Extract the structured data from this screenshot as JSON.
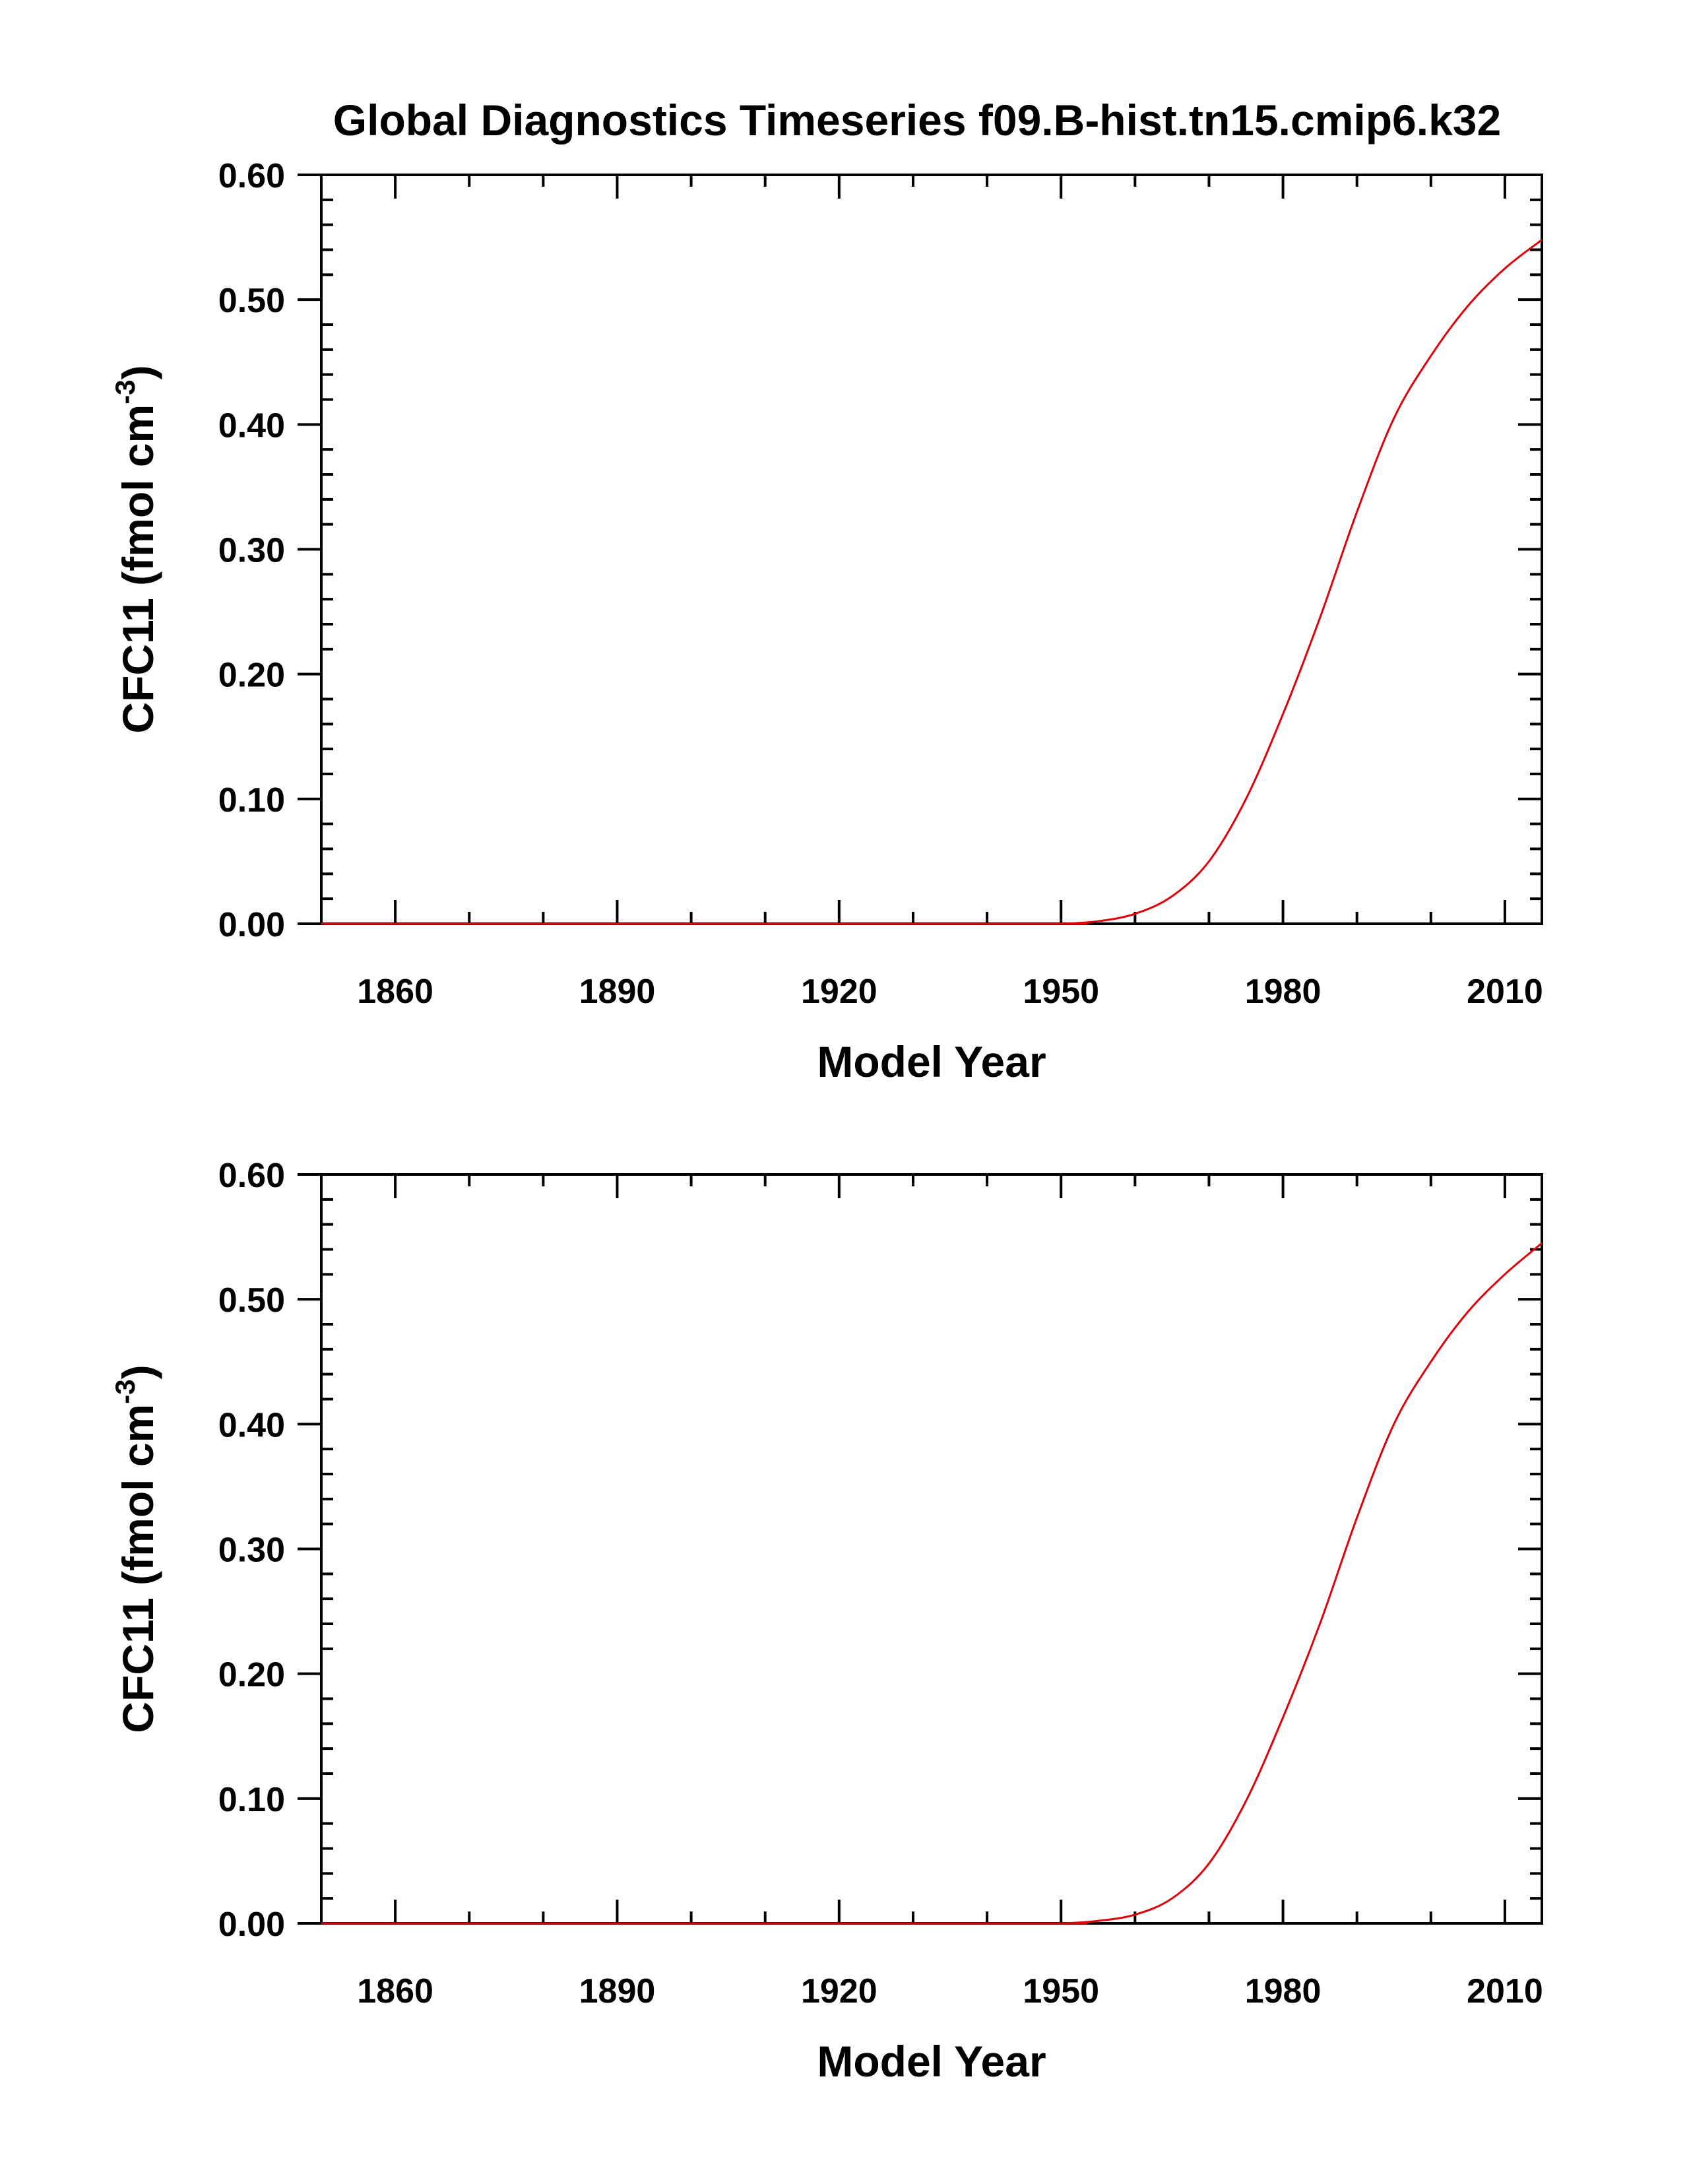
{
  "figure_title": "Global Diagnostics Timeseries f09.B-hist.tn15.cmip6.k32",
  "colors": {
    "series": "#e0000a",
    "axes": "#000000"
  },
  "chart_data": [
    {
      "type": "line",
      "xlabel": "Model Year",
      "ylabel": {
        "main": "CFC11 (fmol cm",
        "superscript": "-3",
        "close": ")"
      },
      "xlim": [
        1850,
        2015
      ],
      "ylim": [
        0.0,
        0.6
      ],
      "xticks": [
        1860,
        1890,
        1920,
        1950,
        1980,
        2010
      ],
      "xtick_labels": [
        "1860",
        "1890",
        "1920",
        "1950",
        "1980",
        "2010"
      ],
      "xminor_step": 10,
      "yticks": [
        0.0,
        0.1,
        0.2,
        0.3,
        0.4,
        0.5,
        0.6
      ],
      "ytick_labels": [
        "0.00",
        "0.10",
        "0.20",
        "0.30",
        "0.40",
        "0.50",
        "0.60"
      ],
      "yminor_step": 0.02,
      "series": [
        {
          "name": "CFC11",
          "x": [
            1850,
            1945,
            1950,
            1955,
            1960,
            1965,
            1970,
            1975,
            1980,
            1985,
            1990,
            1995,
            2000,
            2005,
            2010,
            2015
          ],
          "y": [
            0.0,
            0.0,
            0.0,
            0.002,
            0.008,
            0.022,
            0.05,
            0.1,
            0.168,
            0.245,
            0.33,
            0.405,
            0.455,
            0.495,
            0.525,
            0.548
          ]
        }
      ]
    },
    {
      "type": "line",
      "xlabel": "Model Year",
      "ylabel": {
        "main": "CFC11 (fmol cm",
        "superscript": "-3",
        "close": ")"
      },
      "xlim": [
        1850,
        2015
      ],
      "ylim": [
        0.0,
        0.6
      ],
      "xticks": [
        1860,
        1890,
        1920,
        1950,
        1980,
        2010
      ],
      "xtick_labels": [
        "1860",
        "1890",
        "1920",
        "1950",
        "1980",
        "2010"
      ],
      "xminor_step": 10,
      "yticks": [
        0.0,
        0.1,
        0.2,
        0.3,
        0.4,
        0.5,
        0.6
      ],
      "ytick_labels": [
        "0.00",
        "0.10",
        "0.20",
        "0.30",
        "0.40",
        "0.50",
        "0.60"
      ],
      "yminor_step": 0.02,
      "series": [
        {
          "name": "CFC11",
          "x": [
            1850,
            1945,
            1950,
            1955,
            1960,
            1965,
            1970,
            1975,
            1980,
            1985,
            1990,
            1995,
            2000,
            2005,
            2010,
            2015
          ],
          "y": [
            0.0,
            0.0,
            0.0,
            0.002,
            0.007,
            0.02,
            0.048,
            0.098,
            0.165,
            0.24,
            0.325,
            0.4,
            0.45,
            0.49,
            0.52,
            0.545
          ]
        }
      ]
    }
  ]
}
